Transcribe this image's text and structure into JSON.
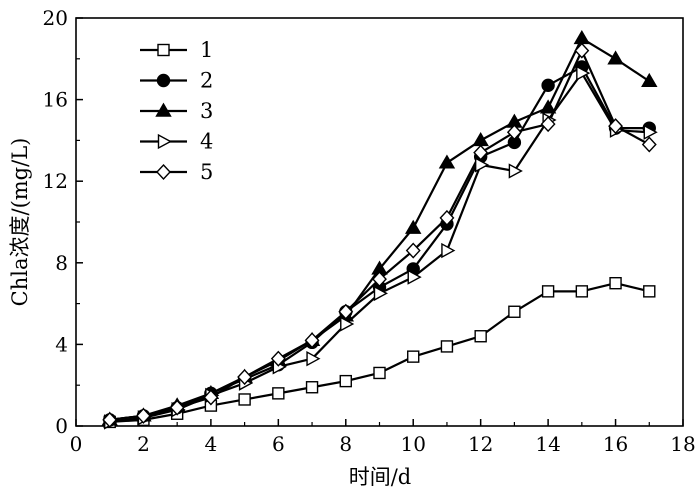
{
  "chart_data": {
    "type": "line",
    "xlabel": "时间/d",
    "ylabel": "Chla浓度/(mg/L)",
    "xlim": [
      0,
      18
    ],
    "ylim": [
      0,
      20
    ],
    "xticks": [
      "0",
      "2",
      "4",
      "6",
      "8",
      "10",
      "12",
      "14",
      "16",
      "18"
    ],
    "yticks": [
      "0",
      "4",
      "8",
      "12",
      "16",
      "20"
    ],
    "grid": false,
    "legend_position": "top-left",
    "x": [
      1,
      2,
      3,
      4,
      5,
      6,
      7,
      8,
      9,
      10,
      11,
      12,
      13,
      14,
      15,
      16,
      17
    ],
    "series": [
      {
        "name": "1",
        "marker": "square-open",
        "values": [
          0.2,
          0.3,
          0.6,
          1.0,
          1.3,
          1.6,
          1.9,
          2.2,
          2.6,
          3.4,
          3.9,
          4.4,
          5.6,
          6.6,
          6.6,
          7.0,
          6.6
        ]
      },
      {
        "name": "2",
        "marker": "circle-filled",
        "values": [
          0.3,
          0.5,
          0.9,
          1.6,
          2.3,
          3.0,
          4.1,
          5.6,
          6.8,
          7.7,
          9.9,
          13.2,
          13.9,
          16.7,
          17.6,
          14.6,
          14.6
        ]
      },
      {
        "name": "3",
        "marker": "triangle-up-filled",
        "values": [
          0.3,
          0.5,
          1.0,
          1.6,
          2.4,
          3.2,
          4.2,
          5.4,
          7.7,
          9.7,
          12.9,
          14.0,
          14.9,
          15.6,
          19.0,
          18.0,
          16.9
        ]
      },
      {
        "name": "4",
        "marker": "triangle-right-open",
        "values": [
          0.2,
          0.4,
          0.8,
          1.5,
          2.1,
          2.9,
          3.3,
          5.0,
          6.5,
          7.3,
          8.6,
          12.8,
          12.5,
          15.0,
          17.3,
          14.5,
          14.4
        ]
      },
      {
        "name": "5",
        "marker": "diamond-open",
        "values": [
          0.3,
          0.5,
          0.9,
          1.4,
          2.4,
          3.3,
          4.2,
          5.6,
          7.2,
          8.6,
          10.2,
          13.4,
          14.4,
          14.8,
          18.4,
          14.7,
          13.8
        ]
      }
    ]
  }
}
